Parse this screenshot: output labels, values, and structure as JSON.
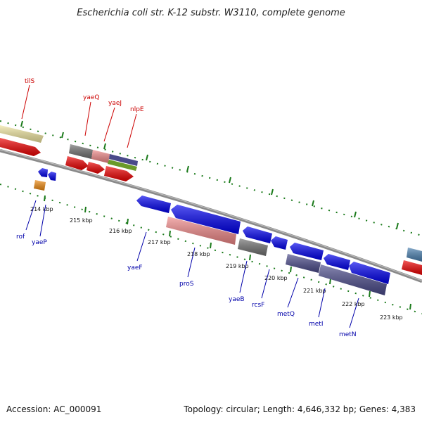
{
  "header": {
    "title": "Escherichia coli str. K-12 substr. W3110, complete genome"
  },
  "footer": {
    "accession": "Accession: AC_000091",
    "summary": "Topology: circular; Length: 4,646,332 bp; Genes: 4,383"
  },
  "map": {
    "tick_labels": [
      {
        "id": "214",
        "text": "214 kbp"
      },
      {
        "id": "215",
        "text": "215 kbp"
      },
      {
        "id": "216",
        "text": "216 kbp"
      },
      {
        "id": "217",
        "text": "217 kbp"
      },
      {
        "id": "218",
        "text": "218 kbp"
      },
      {
        "id": "219",
        "text": "219 kbp"
      },
      {
        "id": "220",
        "text": "220 kbp"
      },
      {
        "id": "221",
        "text": "221 kbp"
      },
      {
        "id": "222",
        "text": "222 kbp"
      },
      {
        "id": "223",
        "text": "223 kbp"
      }
    ],
    "forward_gene_labels": [
      "tilS",
      "yaeQ",
      "yaeJ",
      "nlpE"
    ],
    "reverse_gene_labels": [
      "rof",
      "yaeP",
      "yaeF",
      "proS",
      "yaeB",
      "rcsF",
      "metQ",
      "metI",
      "metN"
    ],
    "colors": {
      "forward_label": "#cc0000",
      "reverse_label": "#0000aa",
      "backbone": "#808080",
      "tick": "#1a7a1a",
      "forward_cds": "#ee0000",
      "reverse_cds": "#0000ee",
      "tRNA": "#f0e6a0",
      "grey_feature": "#707070",
      "pink_feature": "#f08888",
      "slate_feature": "#4a4a8a",
      "olive_feature": "#6a9a2a",
      "orange_feature": "#f08a10",
      "steel_feature": "#4a80b0"
    }
  }
}
